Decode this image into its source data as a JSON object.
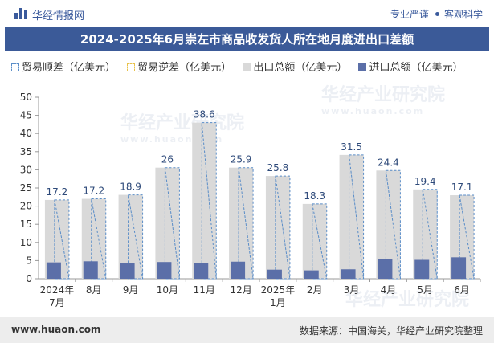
{
  "header": {
    "brand": "华经情报网",
    "tagline_left": "专业严谨",
    "tagline_right": "客观科学"
  },
  "title": "2024-2025年6月崇左市商品收发货人所在地月度进出口差额",
  "legend": {
    "surplus": "贸易顺差（亿美元）",
    "deficit": "贸易逆差（亿美元）",
    "export": "出口总额（亿美元）",
    "import": "进口总额（亿美元）"
  },
  "watermark": {
    "text": "华经产业研究院",
    "url": "www.huaon.com"
  },
  "footer": {
    "website": "www.huaon.com",
    "source": "数据来源：中国海关，华经产业研究院整理"
  },
  "colors": {
    "header_bg": "#3b5a98",
    "export": "#d9d9d9",
    "import": "#5b6fa8",
    "surplus_border": "#5a8dc8",
    "label": "#2e4a7a"
  },
  "chart_data": {
    "type": "bar",
    "categories": [
      "2024年\n7月",
      "8月",
      "9月",
      "10月",
      "11月",
      "12月",
      "2025年\n1月",
      "2月",
      "3月",
      "4月",
      "5月",
      "6月"
    ],
    "series": [
      {
        "name": "出口总额（亿美元）",
        "values": [
          21.7,
          22.0,
          23.1,
          30.6,
          43.0,
          30.6,
          28.3,
          20.6,
          34.1,
          29.8,
          24.6,
          23.0
        ]
      },
      {
        "name": "进口总额（亿美元）",
        "values": [
          4.5,
          4.8,
          4.2,
          4.6,
          4.4,
          4.7,
          2.5,
          2.3,
          2.6,
          5.4,
          5.2,
          5.9
        ]
      },
      {
        "name": "贸易顺差（亿美元）",
        "values": [
          17.2,
          17.2,
          18.9,
          26,
          38.6,
          25.9,
          25.8,
          18.3,
          31.5,
          24.4,
          19.4,
          17.1
        ]
      },
      {
        "name": "贸易逆差（亿美元）",
        "values": [
          0,
          0,
          0,
          0,
          0,
          0,
          0,
          0,
          0,
          0,
          0,
          0
        ]
      }
    ],
    "data_labels": [
      "17.2",
      "17.2",
      "18.9",
      "26",
      "38.6",
      "25.9",
      "25.8",
      "18.3",
      "31.5",
      "24.4",
      "19.4",
      "17.1"
    ],
    "y_ticks": [
      "0",
      "5",
      "10",
      "15",
      "20",
      "25",
      "30",
      "35",
      "40",
      "45",
      "50"
    ],
    "ylim": [
      0,
      50
    ],
    "grid": false,
    "legend_position": "top"
  }
}
